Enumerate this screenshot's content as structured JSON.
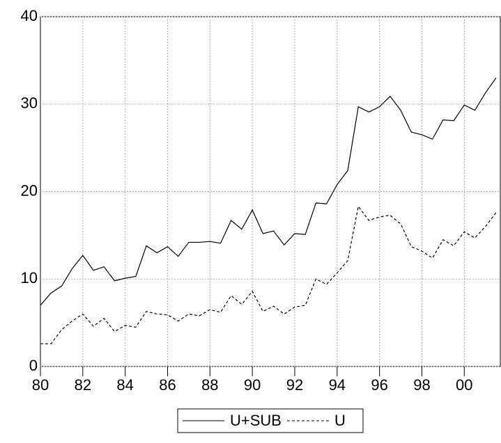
{
  "chart_data": {
    "type": "line",
    "x": [
      1980,
      1980.5,
      1981,
      1981.5,
      1982,
      1982.5,
      1983,
      1983.5,
      1984,
      1984.5,
      1985,
      1985.5,
      1986,
      1986.5,
      1987,
      1987.5,
      1988,
      1988.5,
      1989,
      1989.5,
      1990,
      1990.5,
      1991,
      1991.5,
      1992,
      1992.5,
      1993,
      1993.5,
      1994,
      1994.5,
      1995,
      1995.5,
      1996,
      1996.5,
      1997,
      1997.5,
      1998,
      1998.5,
      1999,
      1999.5,
      2000,
      2000.5,
      2001,
      2001.5
    ],
    "series": [
      {
        "name": "U+SUB",
        "color": "#000000",
        "dash": "none",
        "values": [
          7.0,
          8.4,
          9.2,
          11.2,
          12.7,
          11.0,
          11.4,
          9.8,
          10.1,
          10.3,
          13.8,
          13.0,
          13.7,
          12.6,
          14.2,
          14.2,
          14.3,
          14.1,
          16.7,
          15.7,
          17.9,
          15.2,
          15.5,
          13.9,
          15.2,
          15.1,
          18.7,
          18.6,
          20.8,
          22.4,
          29.7,
          29.1,
          29.7,
          30.9,
          29.3,
          26.8,
          26.5,
          26.0,
          28.2,
          28.1,
          29.9,
          29.3,
          31.3,
          33.0
        ]
      },
      {
        "name": "U",
        "color": "#000000",
        "dash": "4 3",
        "values": [
          2.6,
          2.6,
          4.2,
          5.2,
          6.0,
          4.6,
          5.5,
          4.0,
          4.7,
          4.5,
          6.3,
          6.0,
          5.9,
          5.2,
          6.0,
          5.8,
          6.5,
          6.2,
          8.1,
          7.1,
          8.6,
          6.3,
          6.9,
          6.0,
          6.8,
          7.0,
          10.0,
          9.4,
          10.7,
          12.1,
          18.3,
          16.7,
          17.1,
          17.3,
          16.3,
          13.7,
          13.2,
          12.4,
          14.5,
          13.8,
          15.4,
          14.7,
          16.0,
          17.6
        ]
      }
    ],
    "xlim": [
      1980,
      2001.7
    ],
    "xticks": [
      {
        "value": 1980,
        "label": "80"
      },
      {
        "value": 1982,
        "label": "82"
      },
      {
        "value": 1984,
        "label": "84"
      },
      {
        "value": 1986,
        "label": "86"
      },
      {
        "value": 1988,
        "label": "88"
      },
      {
        "value": 1990,
        "label": "90"
      },
      {
        "value": 1992,
        "label": "92"
      },
      {
        "value": 1994,
        "label": "94"
      },
      {
        "value": 1996,
        "label": "96"
      },
      {
        "value": 1998,
        "label": "98"
      },
      {
        "value": 2000,
        "label": "00"
      }
    ],
    "ylim": [
      0,
      40
    ],
    "yticks": [
      0,
      10,
      20,
      30,
      40
    ],
    "grid": true
  }
}
